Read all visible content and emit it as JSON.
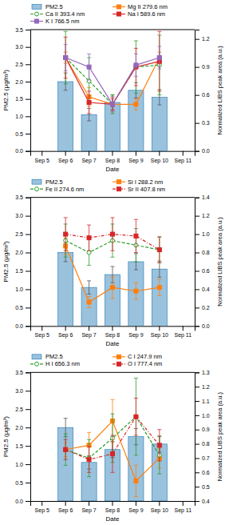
{
  "chart_data": [
    {
      "type": "bar",
      "categories": [
        "Sep 5",
        "Sep 6",
        "Sep 7",
        "Sep 8",
        "Sep 9",
        "Sep 10",
        "Sep 11"
      ],
      "xlabel": "Date",
      "ylabel": "PM2.5 (μg/m³)",
      "y2label": "Normalized LIBS peak area (a.u.)",
      "ylim": [
        0.0,
        3.5
      ],
      "yticks": [
        {
          "value": 0.0,
          "label": "0.0"
        },
        0.5,
        {
          "value": 1.0,
          "label": "1.0"
        },
        1.5,
        {
          "value": 2.0,
          "label": "2.0"
        },
        2.5,
        {
          "value": 3.0,
          "label": "3.0"
        },
        3.5
      ],
      "y2lim": [
        0.0,
        1.3
      ],
      "y2ticks": [
        {
          "value": 0.0,
          "label": "0.0"
        },
        0.3,
        0.6,
        0.9,
        1.2
      ],
      "legend": "upper left",
      "series": [
        {
          "name": "PM2.5",
          "type": "bar",
          "values": [
            null,
            2.0,
            1.05,
            1.4,
            1.75,
            1.55,
            null
          ],
          "errors": [
            null,
            0.25,
            0.18,
            0.22,
            0.22,
            0.22,
            null
          ]
        },
        {
          "name": "Mg II 279.6 nm",
          "type": "line",
          "axis": "y2",
          "marker": "square",
          "line_style": "solid",
          "values": [
            null,
            1.0,
            0.58,
            0.5,
            0.5,
            1.0,
            null
          ],
          "errors": [
            null,
            0.06,
            0.1,
            0.08,
            0.06,
            0.06,
            null
          ]
        },
        {
          "name": "Ca II 393.4 nm",
          "type": "line",
          "axis": "y2",
          "marker": "open-circle",
          "line_style": "dashed",
          "values": [
            null,
            1.0,
            0.75,
            0.5,
            0.9,
            0.92,
            null
          ],
          "errors": [
            null,
            0.28,
            0.25,
            0.1,
            0.28,
            0.32,
            null
          ]
        },
        {
          "name": "Na I 589.6 nm",
          "type": "line",
          "axis": "y2",
          "marker": "square",
          "line_style": "solid",
          "values": [
            null,
            1.0,
            0.52,
            0.5,
            0.9,
            0.96,
            null
          ],
          "errors": [
            null,
            0.22,
            0.12,
            0.06,
            0.2,
            0.32,
            null
          ]
        },
        {
          "name": "K I 766.5 nm",
          "type": "line",
          "axis": "y2",
          "marker": "square",
          "line_style": "solid",
          "values": [
            null,
            1.0,
            0.9,
            0.5,
            0.92,
            1.0,
            null
          ],
          "errors": [
            null,
            0.14,
            0.14,
            0.08,
            0.12,
            0.12,
            null
          ]
        }
      ]
    },
    {
      "type": "bar",
      "categories": [
        "Sep 5",
        "Sep 6",
        "Sep 7",
        "Sep 8",
        "Sep 9",
        "Sep 10",
        "Sep 11"
      ],
      "xlabel": "Date",
      "ylabel": "PM2.5 (μg/m³)",
      "y2label": "Normalized LIBS peak area (a.u.)",
      "ylim": [
        0.0,
        3.5
      ],
      "yticks": [
        {
          "value": 0.0,
          "label": "0.0"
        },
        0.5,
        {
          "value": 1.0,
          "label": "1.0"
        },
        1.5,
        {
          "value": 2.0,
          "label": "2.0"
        },
        2.5,
        {
          "value": 3.0,
          "label": "3.0"
        },
        3.5
      ],
      "y2lim": [
        0.0,
        1.4
      ],
      "y2ticks": [
        {
          "value": 0.0,
          "label": "0.0"
        },
        0.2,
        0.4,
        0.6,
        0.8,
        {
          "value": 1.0,
          "label": "1.0"
        },
        1.2,
        1.4
      ],
      "legend": "upper left",
      "series": [
        {
          "name": "PM2.5",
          "type": "bar",
          "values": [
            null,
            2.0,
            1.05,
            1.4,
            1.75,
            1.55,
            null
          ],
          "errors": [
            null,
            0.25,
            0.18,
            0.22,
            0.22,
            0.22,
            null
          ]
        },
        {
          "name": "Si I 288.2 nm",
          "type": "line",
          "axis": "y2",
          "marker": "square",
          "line_style": "solid",
          "values": [
            null,
            0.87,
            0.26,
            0.42,
            0.38,
            0.42,
            null
          ],
          "errors": [
            null,
            0.09,
            0.06,
            0.12,
            0.09,
            0.09,
            null
          ]
        },
        {
          "name": "Fe II 274.6 nm",
          "type": "line",
          "axis": "y2",
          "marker": "open-circle",
          "line_style": "dashed",
          "values": [
            null,
            0.93,
            0.8,
            0.93,
            0.88,
            0.83,
            null
          ],
          "errors": [
            null,
            0.18,
            0.14,
            0.18,
            0.18,
            0.14,
            null
          ]
        },
        {
          "name": "Sr II 407.8 nm",
          "type": "line",
          "axis": "y2",
          "marker": "square",
          "line_style": "dashdot",
          "values": [
            null,
            1.0,
            0.96,
            1.0,
            0.98,
            0.83,
            null
          ],
          "errors": [
            null,
            0.18,
            0.14,
            0.18,
            0.18,
            0.14,
            null
          ]
        }
      ]
    },
    {
      "type": "bar",
      "categories": [
        "Sep 5",
        "Sep 6",
        "Sep 7",
        "Sep 8",
        "Sep 9",
        "Sep 10",
        "Sep 11"
      ],
      "xlabel": "Date",
      "ylabel": "PM2.5 (μg/m³)",
      "y2label": "Normalized LIBS peak area (a.u.)",
      "ylim": [
        0.0,
        3.5
      ],
      "yticks": [
        {
          "value": 0.0,
          "label": "0.0"
        },
        0.5,
        {
          "value": 1.0,
          "label": "1.0"
        },
        1.5,
        {
          "value": 2.0,
          "label": "2.0"
        },
        2.5,
        {
          "value": 3.0,
          "label": "3.0"
        },
        3.5
      ],
      "y2lim": [
        0.4,
        1.3
      ],
      "y2ticks": [
        0.4,
        0.5,
        0.6,
        0.7,
        0.8,
        0.9,
        {
          "value": 1.0,
          "label": "1.0"
        },
        1.1,
        1.2,
        1.3
      ],
      "legend": "upper left",
      "series": [
        {
          "name": "PM2.5",
          "type": "bar",
          "values": [
            null,
            2.0,
            1.05,
            1.4,
            1.75,
            1.55,
            null
          ],
          "errors": [
            null,
            0.25,
            0.18,
            0.22,
            0.22,
            0.22,
            null
          ]
        },
        {
          "name": "C I 247.9 nm",
          "type": "line",
          "axis": "y2",
          "marker": "square",
          "line_style": "solid",
          "values": [
            null,
            0.76,
            0.79,
            0.96,
            0.54,
            0.7,
            null
          ],
          "errors": [
            null,
            0.05,
            0.09,
            0.15,
            0.11,
            0.07,
            null
          ]
        },
        {
          "name": "H I 656.3 nm",
          "type": "line",
          "axis": "y2",
          "marker": "open-circle",
          "line_style": "dashed",
          "values": [
            null,
            0.76,
            0.7,
            0.84,
            0.99,
            0.72,
            null
          ],
          "errors": [
            null,
            0.11,
            0.13,
            0.17,
            0.27,
            0.13,
            null
          ]
        },
        {
          "name": "O I 777.4 nm",
          "type": "line",
          "axis": "y2",
          "marker": "square",
          "line_style": "dashdot",
          "values": [
            null,
            0.76,
            0.69,
            0.73,
            0.99,
            0.79,
            null
          ],
          "errors": [
            null,
            0.07,
            0.09,
            0.13,
            0.13,
            0.11,
            null
          ]
        }
      ]
    }
  ]
}
